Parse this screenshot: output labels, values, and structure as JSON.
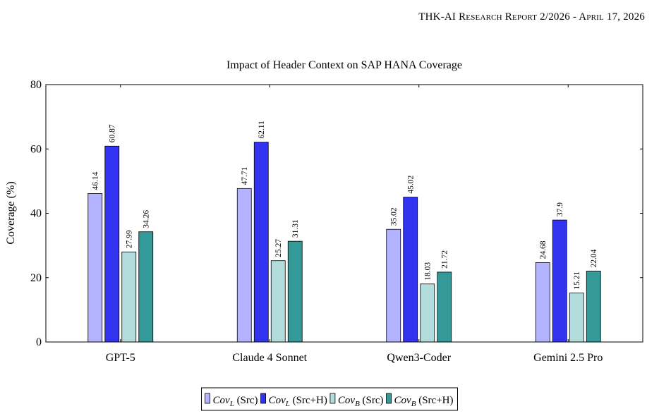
{
  "header": {
    "text_a": "THK-AI R",
    "text_b": "esearch",
    "text_c": " R",
    "text_d": "eport",
    "text_e": " 2/2026 - A",
    "text_f": "pril",
    "text_g": " 17, 2026"
  },
  "chart_data": {
    "type": "bar",
    "title": "Impact of Header Context on SAP HANA Coverage",
    "xlabel": "",
    "ylabel": "Coverage (%)",
    "ylim": [
      0,
      80
    ],
    "yticks": [
      0,
      20,
      40,
      60,
      80
    ],
    "grid": false,
    "legend_position": "bottom-center",
    "categories": [
      "GPT-5",
      "Claude 4 Sonnet",
      "Qwen3-Coder",
      "Gemini 2.5 Pro"
    ],
    "series": [
      {
        "name": "Cov_L (Src)",
        "label_main": "Cov",
        "label_sub": "L",
        "label_rest": " (Src)",
        "color": "#b3b3ff",
        "values": [
          46.14,
          47.71,
          35.02,
          24.68
        ],
        "value_labels": [
          "46.14",
          "47.71",
          "35.02",
          "24.68"
        ]
      },
      {
        "name": "Cov_L (Src+H)",
        "label_main": "Cov",
        "label_sub": "L",
        "label_rest": " (Src+H)",
        "color": "#3333f2",
        "values": [
          60.87,
          62.11,
          45.02,
          37.9
        ],
        "value_labels": [
          "60.87",
          "62.11",
          "45.02",
          "37.9"
        ]
      },
      {
        "name": "Cov_B (Src)",
        "label_main": "Cov",
        "label_sub": "B",
        "label_rest": " (Src)",
        "color": "#b3dcdc",
        "values": [
          27.99,
          25.27,
          18.03,
          15.21
        ],
        "value_labels": [
          "27.99",
          "25.27",
          "18.03",
          "15.21"
        ]
      },
      {
        "name": "Cov_B (Src+H)",
        "label_main": "Cov",
        "label_sub": "B",
        "label_rest": " (Src+H)",
        "color": "#339999",
        "values": [
          34.26,
          31.31,
          21.72,
          22.04
        ],
        "value_labels": [
          "34.26",
          "31.31",
          "21.72",
          "22.04"
        ]
      }
    ]
  }
}
